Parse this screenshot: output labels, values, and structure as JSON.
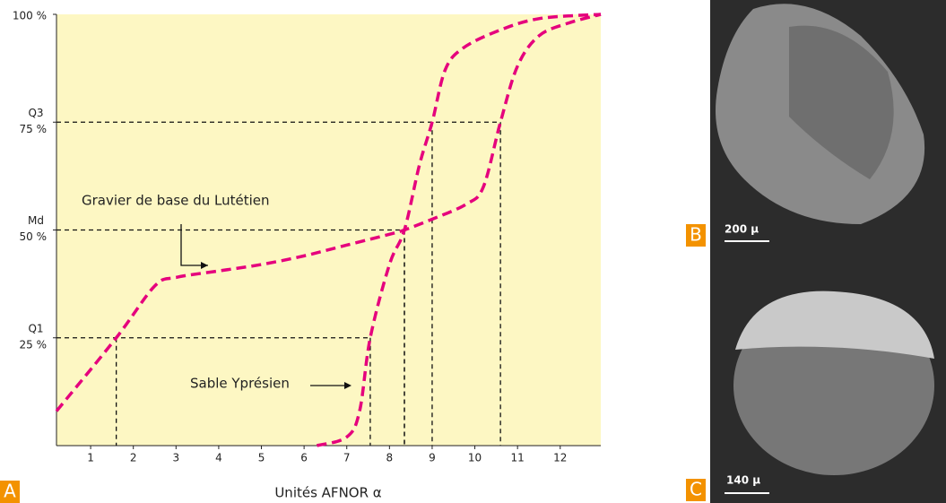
{
  "chart_data": {
    "type": "line",
    "x_label": "Unités AFNOR α",
    "xlim": [
      0.2,
      12.95
    ],
    "ylim": [
      0,
      100
    ],
    "xticks": [
      1,
      2,
      3,
      4,
      5,
      6,
      7,
      8,
      9,
      10,
      11,
      12
    ],
    "yticks": [
      {
        "value": 25,
        "label": "25 %"
      },
      {
        "value": 50,
        "label": "50 %"
      },
      {
        "value": 75,
        "label": "75 %"
      },
      {
        "value": 100,
        "label": "100 %"
      }
    ],
    "quartile_names": [
      "Q1",
      "Md",
      "Q3"
    ],
    "quartile_levels": [
      25,
      50,
      75
    ],
    "background": "#fdf7c3",
    "series": [
      {
        "name": "Gravier de base du Lutétien",
        "color": "#e5007d",
        "x": [
          0.2,
          1.6,
          2.5,
          3.0,
          4,
          5,
          6,
          7,
          8,
          8.35,
          9,
          9.8,
          10.2,
          10.6,
          11,
          11.5,
          12.2,
          12.95
        ],
        "values": [
          8,
          25,
          37,
          39,
          40.5,
          42,
          44,
          46.5,
          49,
          50,
          52.5,
          56,
          60,
          75,
          88,
          95,
          98,
          100
        ],
        "quartiles": [
          1.6,
          8.35,
          10.6
        ]
      },
      {
        "name": "Sable Yprésien",
        "color": "#e5007d",
        "x": [
          6.3,
          7,
          7.3,
          7.55,
          8,
          8.35,
          8.7,
          9,
          9.3,
          9.7,
          10.5,
          11.5,
          12.95
        ],
        "values": [
          0,
          2,
          8,
          25,
          42,
          50,
          65,
          75,
          87,
          92,
          96,
          99,
          100
        ],
        "quartiles": [
          7.55,
          8.35,
          9.0
        ]
      }
    ],
    "panel_tags": [
      "A",
      "B",
      "C"
    ],
    "scale_bars": [
      "200 µ",
      "140 µ"
    ]
  }
}
